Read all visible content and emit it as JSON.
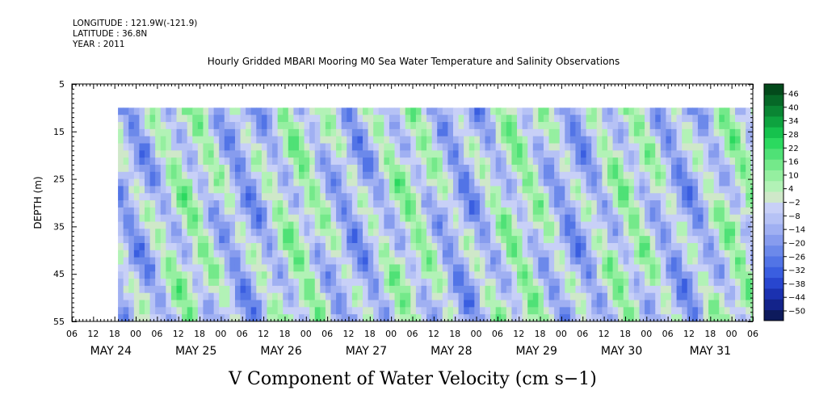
{
  "header": {
    "longitude": "LONGITUDE : 121.9W(-121.9)",
    "latitude": "LATITUDE : 36.8N",
    "year": "YEAR : 2011"
  },
  "chart_data": {
    "type": "heatmap",
    "title": "Hourly Gridded MBARI Mooring M0 Sea Water Temperature and Salinity Observations",
    "xlabel": "V Component of Water Velocity (cm s−1)",
    "ylabel": "DEPTH (m)",
    "y_range": [
      5,
      55
    ],
    "y_inverted": true,
    "y_ticks": [
      5,
      15,
      25,
      35,
      45,
      55
    ],
    "y_tick_labels": [
      "5",
      "15",
      "25",
      "35",
      "45",
      "55"
    ],
    "x_range_hours": [
      0,
      192
    ],
    "hour_tick_labels": [
      "06",
      "12",
      "18",
      "00",
      "06",
      "12",
      "18",
      "00",
      "06",
      "12",
      "18",
      "00",
      "06",
      "12",
      "18",
      "00",
      "06",
      "12",
      "18",
      "00",
      "06",
      "12",
      "18",
      "00",
      "06",
      "12",
      "18",
      "00",
      "06",
      "12",
      "18",
      "00",
      "06"
    ],
    "day_labels": [
      "MAY 24",
      "MAY 25",
      "MAY 26",
      "MAY 27",
      "MAY 28",
      "MAY 29",
      "MAY 30",
      "MAY 31"
    ],
    "data_extent": {
      "start_hour": 13,
      "end_hour": 192,
      "min_depth": 10,
      "max_depth": 55
    },
    "colorbar": {
      "min": -50,
      "max": 50,
      "labels": [
        "46",
        "40",
        "34",
        "28",
        "22",
        "16",
        "10",
        "4",
        "−2",
        "−8",
        "−14",
        "−20",
        "−26",
        "−32",
        "−38",
        "−44",
        "−50"
      ],
      "colors": [
        "#0d1a5c",
        "#13238a",
        "#1b31b0",
        "#2846cf",
        "#3a5ee0",
        "#5274e6",
        "#6c89ea",
        "#879cee",
        "#a0b0f2",
        "#b6c2f5",
        "#c8d0f7",
        "#cfe8c9",
        "#b2f2b6",
        "#95efa0",
        "#74e98a",
        "#4fe176",
        "#2bd95f",
        "#16c24d",
        "#0ea33f",
        "#0a8533",
        "#066827",
        "#034a1b"
      ]
    },
    "grid": false,
    "legend": "right"
  }
}
